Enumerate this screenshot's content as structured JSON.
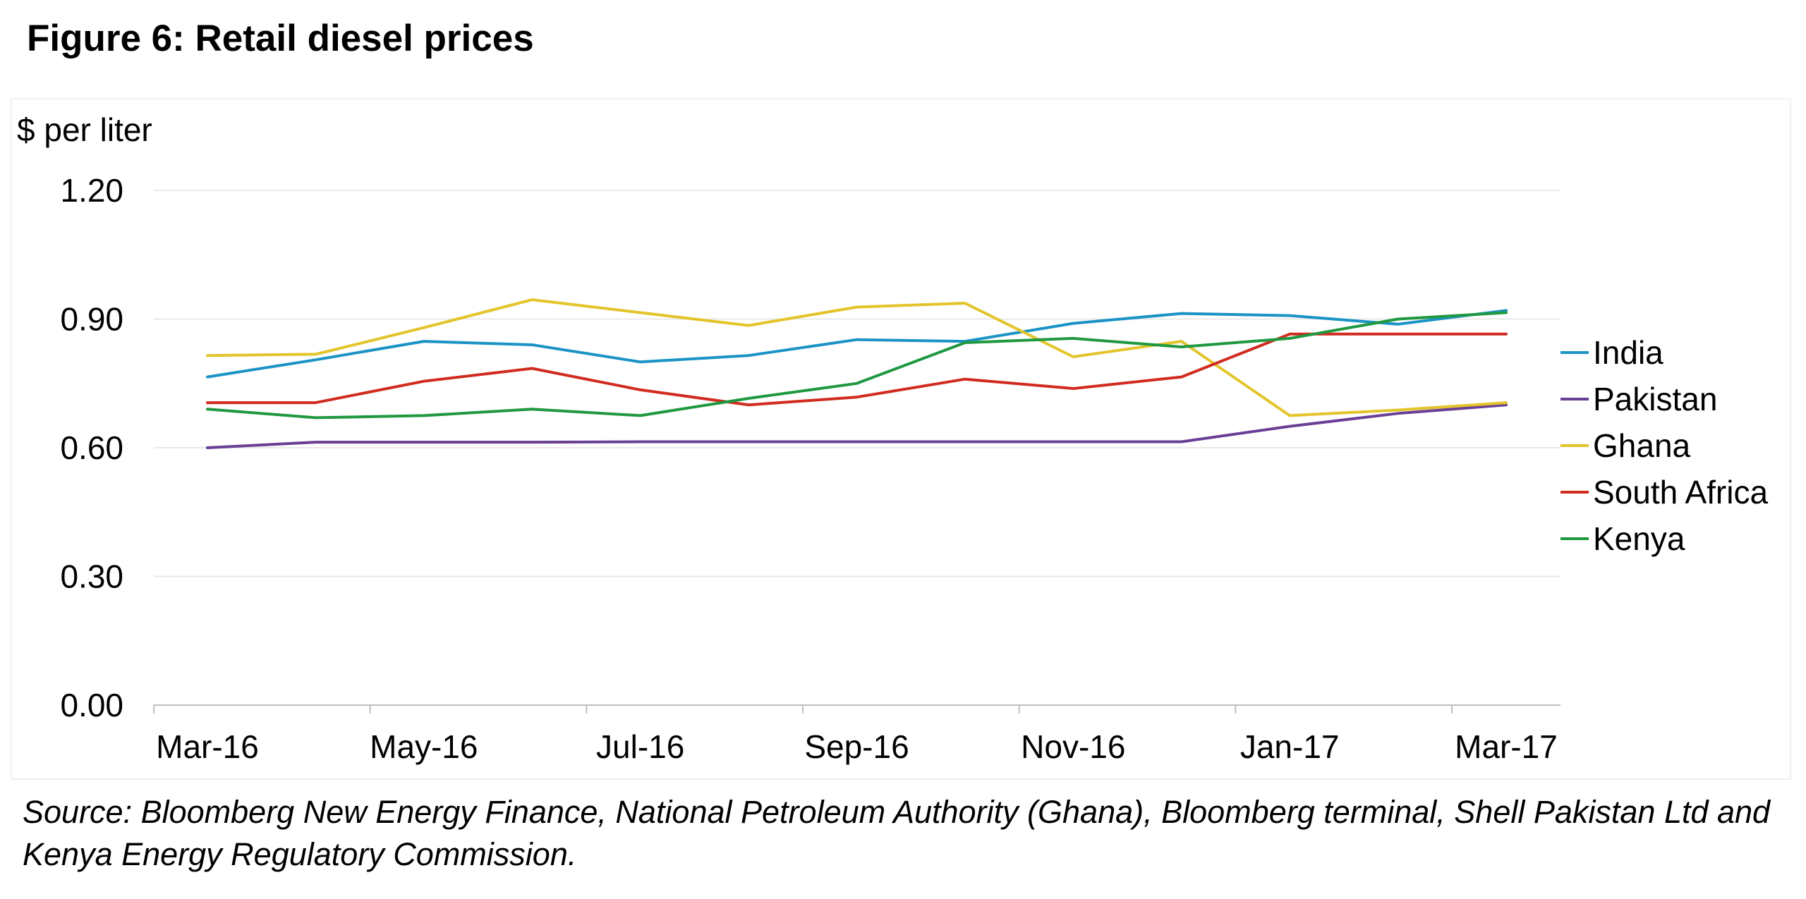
{
  "figure_title": "Figure 6: Retail diesel prices",
  "source_note": "Source: Bloomberg New Energy Finance, National Petroleum Authority (Ghana), Bloomberg terminal, Shell Pakistan Ltd and Kenya Energy Regulatory Commission.",
  "chart_data": {
    "type": "line",
    "title": "",
    "ylabel": "$ per liter",
    "xlabel": "",
    "ylim": [
      0,
      1.2
    ],
    "y_ticks": [
      "0.00",
      "0.30",
      "0.60",
      "0.90",
      "1.20"
    ],
    "x_tick_labels": [
      "Mar-16",
      "May-16",
      "Jul-16",
      "Sep-16",
      "Nov-16",
      "Jan-17",
      "Mar-17"
    ],
    "categories": [
      "Mar-16",
      "Apr-16",
      "May-16",
      "Jun-16",
      "Jul-16",
      "Aug-16",
      "Sep-16",
      "Oct-16",
      "Nov-16",
      "Dec-16",
      "Jan-17",
      "Feb-17",
      "Mar-17"
    ],
    "grid": true,
    "legend": "right",
    "series": [
      {
        "name": "India",
        "color": "#1b93c5",
        "values": [
          0.765,
          0.805,
          0.848,
          0.84,
          0.8,
          0.815,
          0.852,
          0.848,
          0.89,
          0.913,
          0.908,
          0.888,
          0.92
        ]
      },
      {
        "name": "Pakistan",
        "color": "#6a3f96",
        "values": [
          0.6,
          0.613,
          0.613,
          0.613,
          0.614,
          0.614,
          0.614,
          0.614,
          0.614,
          0.614,
          0.65,
          0.68,
          0.7
        ]
      },
      {
        "name": "Ghana",
        "color": "#e3c42b",
        "values": [
          0.815,
          0.818,
          0.88,
          0.945,
          0.915,
          0.885,
          0.928,
          0.937,
          0.812,
          0.848,
          0.675,
          0.688,
          0.705
        ]
      },
      {
        "name": "South Africa",
        "color": "#d12b20",
        "values": [
          0.705,
          0.705,
          0.755,
          0.785,
          0.735,
          0.7,
          0.718,
          0.76,
          0.738,
          0.765,
          0.865,
          0.865,
          0.865
        ]
      },
      {
        "name": "Kenya",
        "color": "#1f9840",
        "values": [
          0.69,
          0.67,
          0.675,
          0.69,
          0.675,
          0.715,
          0.75,
          0.845,
          0.855,
          0.835,
          0.855,
          0.9,
          0.915
        ]
      }
    ]
  }
}
